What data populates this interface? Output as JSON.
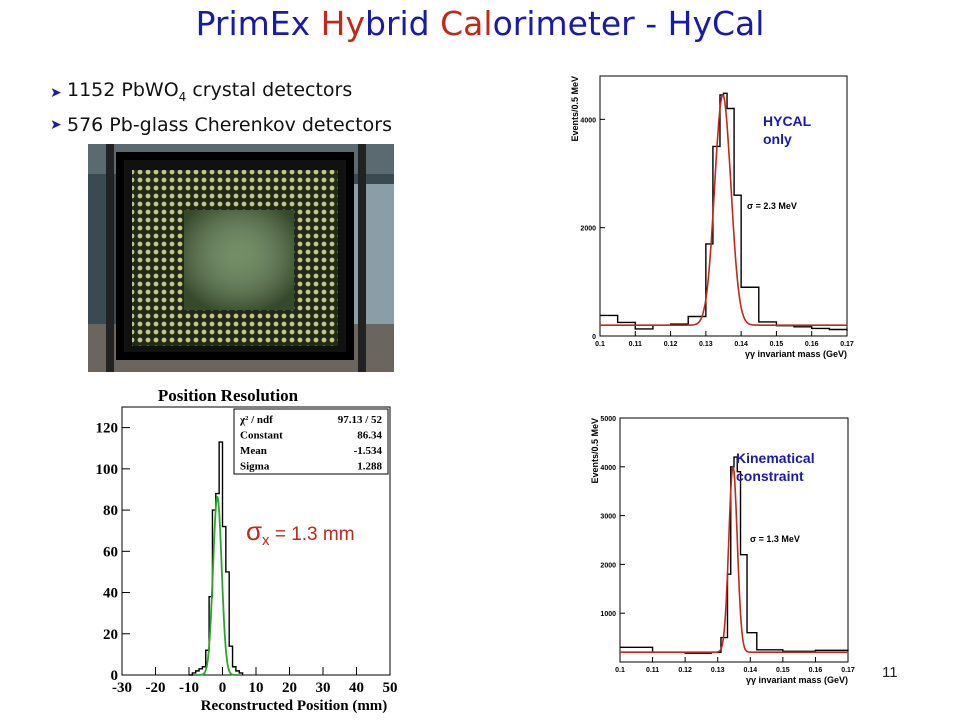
{
  "slide": {
    "title_parts": [
      {
        "text": "PrimEx ",
        "red": false
      },
      {
        "text": "Hy",
        "red": true
      },
      {
        "text": "brid ",
        "red": false
      },
      {
        "text": "Cal",
        "red": true
      },
      {
        "text": "orimeter - HyCal",
        "red": false
      }
    ],
    "bullets": [
      {
        "pre": "1152 PbWO",
        "sub": "4",
        "post": " crystal detectors"
      },
      {
        "pre": "576 Pb-glass Cherenkov detectors",
        "sub": "",
        "post": ""
      }
    ],
    "page_number": "11",
    "colors": {
      "title": "#1a1aa8",
      "title_accent": "#c0281c",
      "annotation": "#1a1aa8",
      "fit_red": "#c0281c",
      "fit_green": "#2aa52a"
    }
  },
  "chart_data": [
    {
      "type": "histogram",
      "title": "Position Resolution",
      "xlabel": "Reconstructed Position (mm)",
      "ylabel": "",
      "xlim": [
        -30,
        50
      ],
      "ylim": [
        0,
        130
      ],
      "x_ticks": [
        "-30",
        "-20",
        "-10",
        "0",
        "10",
        "20",
        "30",
        "40",
        "50"
      ],
      "y_ticks": [
        "0",
        "20",
        "40",
        "60",
        "80",
        "100",
        "120"
      ],
      "stats": [
        {
          "label": "χ² / ndf",
          "value": "97.13  /  52"
        },
        {
          "label": "Constant",
          "value": "86.34"
        },
        {
          "label": "Mean",
          "value": "-1.534"
        },
        {
          "label": "Sigma",
          "value": "1.288"
        }
      ],
      "annotation": {
        "symbol": "σ",
        "sub": "x",
        "text": " = 1.3 mm"
      },
      "histogram": {
        "x": [
          -10,
          -9,
          -8,
          -7,
          -6,
          -5,
          -4,
          -3,
          -2,
          -1,
          0,
          1,
          2,
          3,
          4,
          5,
          6
        ],
        "values": [
          0,
          1,
          2,
          3,
          4,
          12,
          38,
          80,
          88,
          113,
          72,
          50,
          14,
          4,
          2,
          1,
          0
        ]
      },
      "fit": {
        "model": "gaus",
        "constant": 86.34,
        "mean": -1.534,
        "sigma": 1.288,
        "color": "green"
      }
    },
    {
      "type": "histogram",
      "title": "",
      "xlabel": "γγ invariant mass (GeV)",
      "ylabel": "Events/0.5 MeV",
      "xlim": [
        0.1,
        0.17
      ],
      "ylim": [
        0,
        4800
      ],
      "x_ticks": [
        "0.1",
        "0.11",
        "0.12",
        "0.13",
        "0.14",
        "0.15",
        "0.16",
        "0.17"
      ],
      "y_ticks": [
        "0",
        "2000",
        "4000"
      ],
      "annotation": "HYCAL\nonly",
      "sigma_label": "σ = 2.3 MeV",
      "fit": {
        "model": "gaus+bkg",
        "constant": 4450,
        "mean": 0.1348,
        "sigma": 0.0023,
        "background": 200,
        "color": "red"
      },
      "histogram": {
        "x": [
          0.1,
          0.105,
          0.11,
          0.115,
          0.12,
          0.125,
          0.13,
          0.132,
          0.134,
          0.135,
          0.136,
          0.138,
          0.14,
          0.145,
          0.15,
          0.155,
          0.16,
          0.165,
          0.17
        ],
        "values": [
          380,
          250,
          130,
          200,
          220,
          360,
          1700,
          3500,
          4450,
          4480,
          4200,
          2600,
          900,
          260,
          190,
          170,
          140,
          120,
          100
        ]
      }
    },
    {
      "type": "histogram",
      "title": "",
      "xlabel": "γγ invariant mass (GeV)",
      "ylabel": "Events/0.5 MeV",
      "xlim": [
        0.1,
        0.17
      ],
      "ylim": [
        0,
        5000
      ],
      "x_ticks": [
        "0.1",
        "0.11",
        "0.12",
        "0.13",
        "0.14",
        "0.15",
        "0.16",
        "0.17"
      ],
      "y_ticks": [
        "1000",
        "2000",
        "3000",
        "4000",
        "5000"
      ],
      "annotation": "Kinematical\nconstraint",
      "sigma_label": "σ = 1.3 MeV",
      "fit": {
        "model": "gaus+bkg",
        "constant": 4000,
        "mean": 0.1347,
        "sigma": 0.0013,
        "background": 200,
        "color": "red"
      },
      "histogram": {
        "x": [
          0.1,
          0.11,
          0.12,
          0.128,
          0.131,
          0.133,
          0.134,
          0.135,
          0.136,
          0.137,
          0.139,
          0.142,
          0.15,
          0.16,
          0.17
        ],
        "values": [
          300,
          200,
          180,
          200,
          500,
          1800,
          4000,
          4200,
          3900,
          2200,
          600,
          250,
          220,
          240,
          230
        ]
      }
    }
  ]
}
